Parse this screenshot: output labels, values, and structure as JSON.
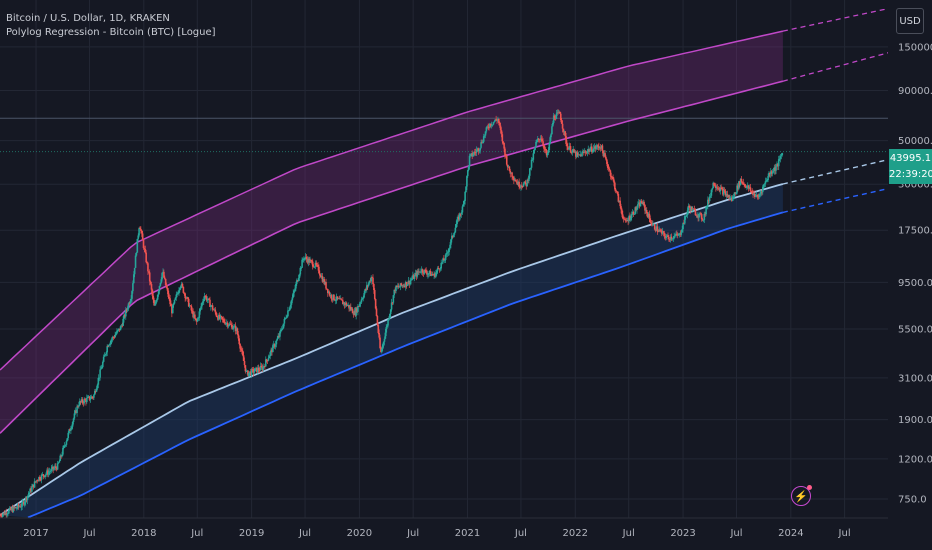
{
  "header": {
    "symbol_line": "Bitcoin / U.S. Dollar, 1D, KRAKEN",
    "indicator_line": "Polylog Regression - Bitcoin (BTC) [Logue]"
  },
  "currency_button": "USD",
  "price_tag": {
    "price": "43995.1",
    "countdown": "22:39:20"
  },
  "alert_icon": "lightning-icon",
  "colors": {
    "background": "#151823",
    "candle_up": "#26a69a",
    "candle_down": "#ef5350",
    "upper_band_top": "#c048c8",
    "upper_band_fill": "#7b2a7e",
    "lower_band_top": "#a9c8e8",
    "lower_band_bottom": "#2962ff",
    "lower_band_fill": "#1c3a66"
  },
  "chart_data": {
    "type": "line",
    "y_scale": "log",
    "ylim": [
      600,
      260000
    ],
    "x_range": [
      "2016-09-01",
      "2024-11-25"
    ],
    "y_ticks": [
      "750.0",
      "1200.0",
      "1900.0",
      "3100.0",
      "5500.0",
      "9500.0",
      "17500.0",
      "30000.0",
      "50000.0",
      "90000.0",
      "150000.0"
    ],
    "x_ticks": [
      "2017",
      "Jul",
      "2018",
      "Jul",
      "2019",
      "Jul",
      "2020",
      "Jul",
      "2021",
      "Jul",
      "2022",
      "Jul",
      "2023",
      "Jul",
      "2024",
      "Jul"
    ],
    "x_tick_dates": [
      "2017-01-01",
      "2017-07-01",
      "2018-01-01",
      "2018-07-01",
      "2019-01-01",
      "2019-07-01",
      "2020-01-01",
      "2020-07-01",
      "2021-01-01",
      "2021-07-01",
      "2022-01-01",
      "2022-07-01",
      "2023-01-01",
      "2023-07-01",
      "2024-01-01",
      "2024-07-01"
    ],
    "horizontal_lines": [
      65000,
      43995.1
    ],
    "bands": {
      "upper_top": {
        "x": [
          "2016-09-01",
          "2017-12-01",
          "2019-06-01",
          "2021-01-01",
          "2022-07-01",
          "2023-12-01",
          "2024-11-25"
        ],
        "y": [
          3400,
          15000,
          36000,
          70000,
          120000,
          180000,
          235000
        ]
      },
      "upper_bottom": {
        "x": [
          "2016-09-01",
          "2017-12-01",
          "2019-06-01",
          "2021-01-01",
          "2022-07-01",
          "2023-12-01",
          "2024-11-25"
        ],
        "y": [
          1620,
          7600,
          19000,
          37000,
          63000,
          100000,
          140000
        ]
      },
      "lower_top": {
        "x": [
          "2016-09-01",
          "2017-06-01",
          "2018-06-01",
          "2019-06-01",
          "2020-06-01",
          "2021-06-01",
          "2022-06-01",
          "2023-06-01",
          "2023-12-01",
          "2024-11-25"
        ],
        "y": [
          620,
          1150,
          2350,
          3900,
          6700,
          10800,
          16600,
          25000,
          30000,
          40000
        ]
      },
      "lower_bottom": {
        "x": [
          "2016-12-01",
          "2017-06-01",
          "2018-06-01",
          "2019-06-01",
          "2020-06-01",
          "2021-06-01",
          "2022-06-01",
          "2023-06-01",
          "2023-12-01",
          "2024-11-25"
        ],
        "y": [
          600,
          780,
          1500,
          2650,
          4500,
          7400,
          11300,
          17800,
          21500,
          28500
        ]
      },
      "projection_start": "2023-12-05"
    },
    "price_series": {
      "x": [
        "2016-09-01",
        "2016-11-15",
        "2017-01-05",
        "2017-03-15",
        "2017-05-25",
        "2017-07-15",
        "2017-09-01",
        "2017-10-15",
        "2017-11-20",
        "2017-12-17",
        "2018-01-15",
        "2018-02-06",
        "2018-03-05",
        "2018-04-06",
        "2018-05-05",
        "2018-06-28",
        "2018-07-25",
        "2018-09-10",
        "2018-11-10",
        "2018-12-15",
        "2019-02-08",
        "2019-04-05",
        "2019-05-20",
        "2019-06-26",
        "2019-08-10",
        "2019-09-25",
        "2019-11-20",
        "2019-12-17",
        "2020-02-13",
        "2020-03-13",
        "2020-04-30",
        "2020-06-15",
        "2020-07-27",
        "2020-09-10",
        "2020-10-21",
        "2020-11-25",
        "2020-12-17",
        "2021-01-08",
        "2021-02-10",
        "2021-03-13",
        "2021-04-14",
        "2021-05-19",
        "2021-06-22",
        "2021-07-20",
        "2021-08-22",
        "2021-09-07",
        "2021-09-28",
        "2021-10-20",
        "2021-11-10",
        "2021-12-04",
        "2022-01-10",
        "2022-02-10",
        "2022-03-28",
        "2022-05-10",
        "2022-06-18",
        "2022-08-14",
        "2022-09-20",
        "2022-11-09",
        "2022-12-20",
        "2023-01-20",
        "2023-03-10",
        "2023-04-14",
        "2023-06-15",
        "2023-07-15",
        "2023-09-11",
        "2023-10-20",
        "2023-11-15",
        "2023-12-05"
      ],
      "y": [
        620,
        700,
        950,
        1100,
        2300,
        2500,
        4600,
        5600,
        8200,
        19000,
        11000,
        7000,
        10800,
        6800,
        9400,
        5900,
        8200,
        6300,
        5500,
        3250,
        3500,
        5100,
        8000,
        12800,
        11400,
        8100,
        7300,
        6600,
        10300,
        4100,
        8800,
        9500,
        11000,
        10300,
        12900,
        19000,
        23000,
        41000,
        46000,
        60000,
        64500,
        36000,
        30000,
        30000,
        49000,
        52500,
        41000,
        66000,
        68500,
        47000,
        41500,
        44500,
        47000,
        31000,
        19000,
        24500,
        18500,
        16000,
        16500,
        23000,
        20000,
        30500,
        25000,
        31500,
        25500,
        34000,
        37000,
        43995.1
      ]
    }
  }
}
